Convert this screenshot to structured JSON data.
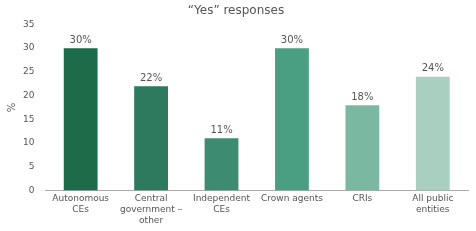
{
  "chart_data": {
    "type": "bar",
    "title": "“Yes” responses",
    "ylabel": "%",
    "categories": [
      "Autonomous\nCEs",
      "Central\ngovernment –\nother",
      "Independent\nCEs",
      "Crown agents",
      "CRIs",
      "All public\nentities"
    ],
    "values": [
      30,
      22,
      11,
      30,
      18,
      24
    ],
    "value_labels": [
      "30%",
      "22%",
      "11%",
      "30%",
      "18%",
      "24%"
    ],
    "colors": [
      "#1e6b4a",
      "#2d7a5f",
      "#3d8c72",
      "#4a9e82",
      "#7ab8a2",
      "#a8cfc0"
    ],
    "ylim": [
      0,
      35
    ],
    "yticks": [
      0,
      5,
      10,
      15,
      20,
      25,
      30,
      35
    ],
    "grid": false,
    "data_labels": true
  }
}
